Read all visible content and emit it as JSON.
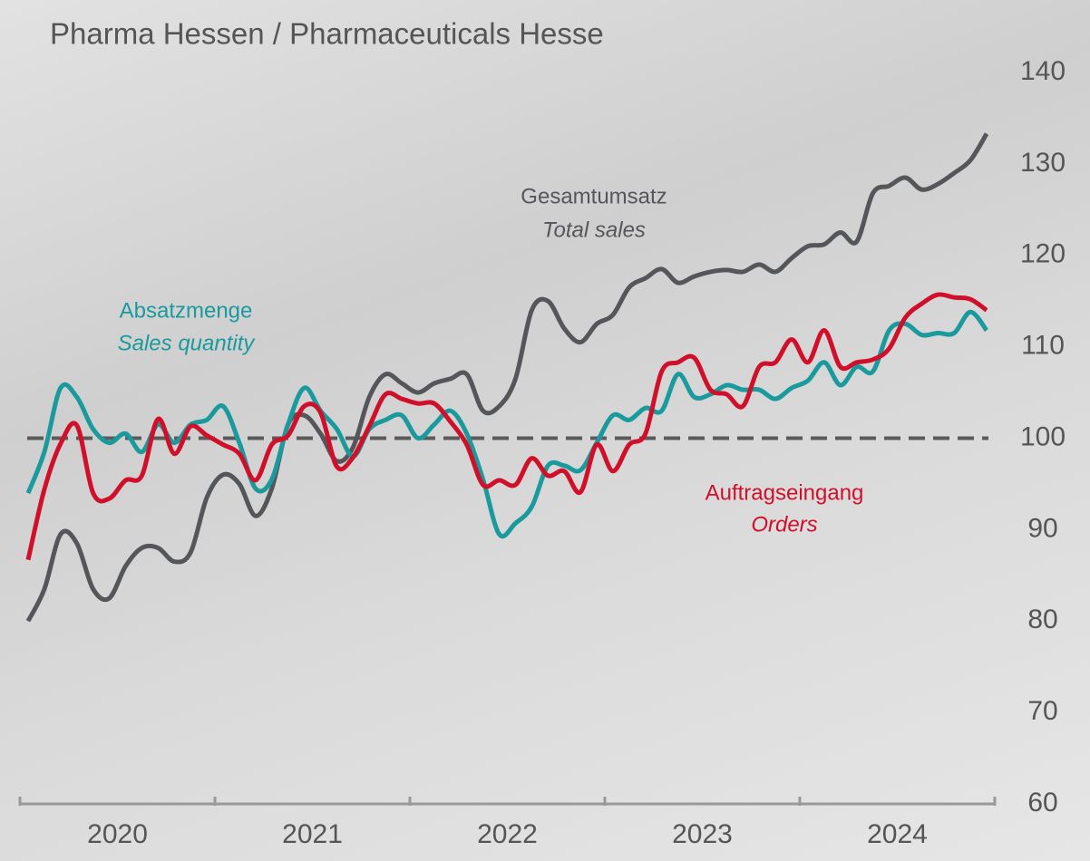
{
  "chart_data": {
    "type": "line",
    "title": "Pharma Hessen / Pharmaceuticals Hesse",
    "categories": [
      "2020",
      null,
      null,
      null,
      null,
      null,
      null,
      null,
      null,
      null,
      null,
      null,
      "2021",
      null,
      null,
      null,
      null,
      null,
      null,
      null,
      null,
      null,
      null,
      null,
      "2022",
      null,
      null,
      null,
      null,
      null,
      null,
      null,
      null,
      null,
      null,
      null,
      "2023",
      null,
      null,
      null,
      null,
      null,
      null,
      null,
      null,
      null,
      null,
      null,
      "2024",
      null,
      null,
      null,
      null,
      null,
      null,
      null,
      null,
      null,
      null,
      null
    ],
    "ylim": [
      60,
      140
    ],
    "yticks": [
      60,
      70,
      80,
      90,
      100,
      110,
      120,
      130,
      140
    ],
    "y_axis_side": "right",
    "reference_line": 100,
    "series": [
      {
        "name": "Gesamtumsatz",
        "name_en": "Total sales",
        "color": "#55565a",
        "values": [
          80.0,
          83.5,
          89.5,
          88.5,
          83.5,
          82.5,
          86,
          88,
          88,
          86.5,
          87.5,
          93.5,
          96,
          95,
          91.5,
          94.5,
          101.5,
          102.5,
          100.5,
          97.5,
          99,
          104.5,
          107,
          106,
          105,
          106,
          106.5,
          107,
          103,
          103.5,
          106.5,
          114,
          115,
          112,
          110.5,
          112.5,
          113.5,
          116.5,
          117.5,
          118.5,
          117,
          117.7,
          118.2,
          118.4,
          118.2,
          119,
          118.2,
          119.7,
          121,
          121.2,
          122.5,
          121.5,
          126.8,
          127.6,
          128.5,
          127.2,
          127.8,
          129,
          130.4,
          133.3
        ]
      },
      {
        "name": "Absatzmenge",
        "name_en": "Sales quantity",
        "color": "#1a9a9c",
        "values": [
          94,
          98.5,
          105.5,
          104.5,
          101,
          99.5,
          100.5,
          98.5,
          101.5,
          99.5,
          101.5,
          102,
          103.5,
          99.5,
          94.5,
          95.5,
          101.5,
          105.5,
          103,
          101,
          98,
          101,
          102,
          102.5,
          100,
          101.5,
          103,
          100.5,
          95.5,
          89.5,
          90.7,
          92.5,
          97,
          97,
          96.5,
          99.5,
          102.5,
          102,
          103.3,
          103,
          107,
          104.5,
          104.8,
          105.8,
          105.3,
          105.3,
          104.3,
          105.5,
          106.3,
          108.3,
          105.8,
          107.8,
          107.3,
          111.8,
          112.5,
          111.3,
          111.5,
          111.5,
          113.8,
          111.8
        ]
      },
      {
        "name": "Auftragseingang",
        "name_en": "Orders",
        "color": "#d0102a",
        "values": [
          86.7,
          94.4,
          99.4,
          101.4,
          94,
          93.4,
          95.4,
          95.9,
          102.1,
          98.3,
          101.3,
          100.3,
          99.3,
          98.3,
          95.4,
          99.3,
          100.3,
          103.5,
          102.8,
          96.9,
          97.9,
          101.3,
          104.8,
          104.3,
          103.8,
          103.8,
          101.8,
          99.3,
          94.9,
          95.4,
          94.9,
          97.8,
          95.9,
          96.4,
          94.1,
          99.3,
          96.4,
          99.3,
          100.5,
          107.3,
          108.3,
          108.8,
          105.3,
          104.8,
          103.5,
          107.8,
          108.3,
          110.8,
          108.3,
          111.8,
          107.8,
          108.3,
          108.6,
          109.8,
          113.2,
          114.7,
          115.7,
          115.4,
          115.2,
          114
        ]
      }
    ]
  }
}
